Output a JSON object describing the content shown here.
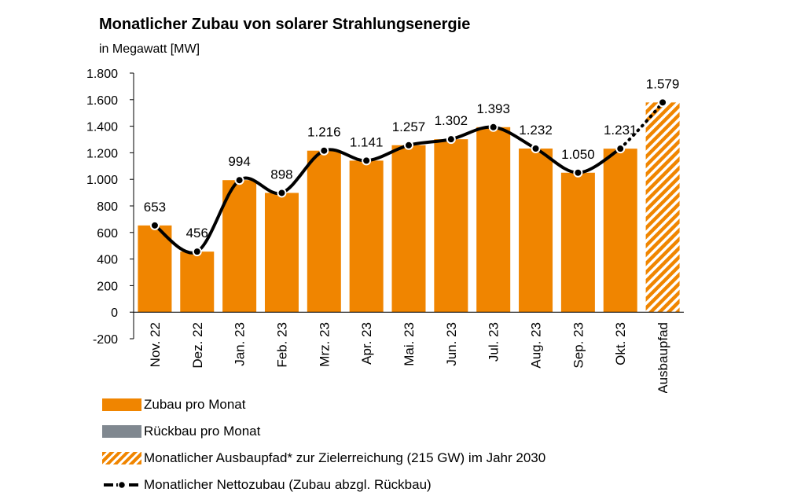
{
  "header": {
    "title": "Monatlicher Zubau von solarer Strahlungsenergie",
    "subtitle": "in Megawatt [MW]"
  },
  "legend": {
    "zubau": "Zubau pro Monat",
    "rueckbau": "Rückbau pro Monat",
    "ausbaupfad": "Monatlicher Ausbaupfad* zur Zielerreichung (215 GW) im Jahr 2030",
    "netto": "Monatlicher Nettozubau (Zubau abzgl. Rückbau)"
  },
  "colors": {
    "bar": "#F08500",
    "rueckbau": "#808890",
    "line": "#000000"
  },
  "chart_data": {
    "type": "bar",
    "title": "Monatlicher Zubau von solarer Strahlungsenergie",
    "ylabel": "in Megawatt [MW]",
    "ylim": [
      -200,
      1800
    ],
    "yticks": [
      -200,
      0,
      200,
      400,
      600,
      800,
      1000,
      1200,
      1400,
      1600,
      1800
    ],
    "ytick_labels": [
      "-200",
      "0",
      "200",
      "400",
      "600",
      "800",
      "1.000",
      "1.200",
      "1.400",
      "1.600",
      "1.800"
    ],
    "categories": [
      "Nov. 22",
      "Dez. 22",
      "Jan. 23",
      "Feb. 23",
      "Mrz. 23",
      "Apr. 23",
      "Mai. 23",
      "Jun. 23",
      "Jul. 23",
      "Aug. 23",
      "Sep. 23",
      "Okt. 23",
      "Ausbaupfad"
    ],
    "series": [
      {
        "name": "Zubau pro Monat",
        "values": [
          653,
          456,
          994,
          898,
          1216,
          1141,
          1257,
          1302,
          1393,
          1232,
          1050,
          1231,
          null
        ]
      },
      {
        "name": "Rückbau pro Monat",
        "values": [
          0,
          0,
          0,
          0,
          0,
          0,
          0,
          0,
          0,
          0,
          0,
          0,
          null
        ]
      },
      {
        "name": "Monatlicher Ausbaupfad* zur Zielerreichung (215 GW) im Jahr 2030",
        "values": [
          null,
          null,
          null,
          null,
          null,
          null,
          null,
          null,
          null,
          null,
          null,
          null,
          1579
        ]
      },
      {
        "name": "Monatlicher Nettozubau (Zubau abzgl. Rückbau)",
        "values": [
          653,
          456,
          994,
          898,
          1216,
          1141,
          1257,
          1302,
          1393,
          1232,
          1050,
          1231,
          null
        ]
      }
    ],
    "data_labels": [
      "653",
      "456",
      "994",
      "898",
      "1.216",
      "1.141",
      "1.257",
      "1.302",
      "1.393",
      "1.232",
      "1.050",
      "1.231",
      "1.579"
    ],
    "legend_position": "bottom",
    "grid": false
  }
}
